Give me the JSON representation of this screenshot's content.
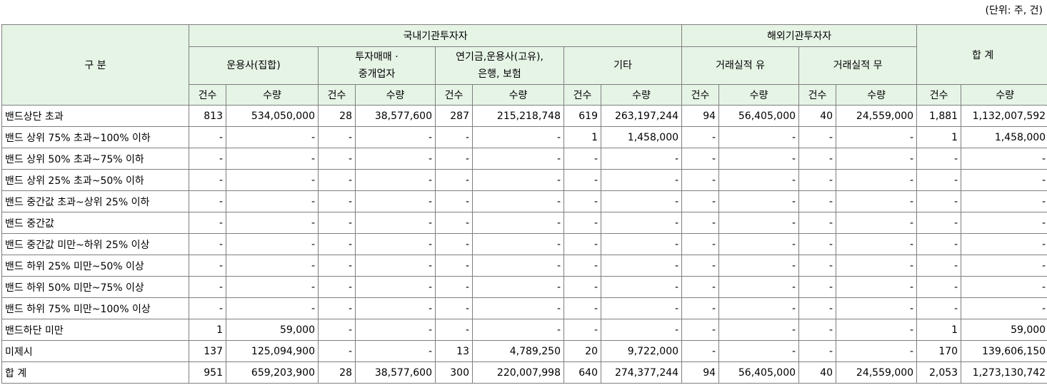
{
  "unit_note": "(단위: 주, 건)",
  "header": {
    "category": "구 분",
    "domestic": "국내기관투자자",
    "foreign": "해외기관투자자",
    "total": "합 계",
    "groups": [
      {
        "line1": "운용사(집합)",
        "line2": ""
      },
      {
        "line1": "투자매매 ·",
        "line2": "중개업자"
      },
      {
        "line1": "연기금,운용사(고유),",
        "line2": "은행, 보험"
      },
      {
        "line1": "기타",
        "line2": ""
      },
      {
        "line1": "거래실적 유",
        "line2": ""
      },
      {
        "line1": "거래실적 무",
        "line2": ""
      }
    ],
    "count_label": "건수",
    "qty_label": "수량"
  },
  "rows": [
    {
      "label": "밴드상단 초과",
      "cells": [
        "813",
        "534,050,000",
        "28",
        "38,577,600",
        "287",
        "215,218,748",
        "619",
        "263,197,244",
        "94",
        "56,405,000",
        "40",
        "24,559,000",
        "1,881",
        "1,132,007,592"
      ]
    },
    {
      "label": "밴드 상위 75% 초과~100% 이하",
      "cells": [
        "-",
        "-",
        "-",
        "-",
        "-",
        "-",
        "1",
        "1,458,000",
        "-",
        "-",
        "-",
        "-",
        "1",
        "1,458,000"
      ]
    },
    {
      "label": "밴드 상위 50% 초과~75% 이하",
      "cells": [
        "-",
        "-",
        "-",
        "-",
        "-",
        "-",
        "-",
        "-",
        "-",
        "-",
        "-",
        "-",
        "-",
        "-"
      ]
    },
    {
      "label": "밴드 상위 25% 초과~50% 이하",
      "cells": [
        "-",
        "-",
        "-",
        "-",
        "-",
        "-",
        "-",
        "-",
        "-",
        "-",
        "-",
        "-",
        "-",
        "-"
      ]
    },
    {
      "label": "밴드 중간값 초과~상위 25% 이하",
      "cells": [
        "-",
        "-",
        "-",
        "-",
        "-",
        "-",
        "-",
        "-",
        "-",
        "-",
        "-",
        "-",
        "-",
        "-"
      ]
    },
    {
      "label": "밴드 중간값",
      "cells": [
        "-",
        "-",
        "-",
        "-",
        "-",
        "-",
        "-",
        "-",
        "-",
        "-",
        "-",
        "-",
        "-",
        "-"
      ]
    },
    {
      "label": "밴드 중간값 미만~하위 25% 이상",
      "cells": [
        "-",
        "-",
        "-",
        "-",
        "-",
        "-",
        "-",
        "-",
        "-",
        "-",
        "-",
        "-",
        "-",
        "-"
      ]
    },
    {
      "label": "밴드 하위 25% 미만~50% 이상",
      "cells": [
        "-",
        "-",
        "-",
        "-",
        "-",
        "-",
        "-",
        "-",
        "-",
        "-",
        "-",
        "-",
        "-",
        "-"
      ]
    },
    {
      "label": "밴드 하위 50% 미만~75% 이상",
      "cells": [
        "-",
        "-",
        "-",
        "-",
        "-",
        "-",
        "-",
        "-",
        "-",
        "-",
        "-",
        "-",
        "-",
        "-"
      ]
    },
    {
      "label": "밴드 하위 75% 미만~100% 이상",
      "cells": [
        "-",
        "-",
        "-",
        "-",
        "-",
        "-",
        "-",
        "-",
        "-",
        "-",
        "-",
        "-",
        "-",
        "-"
      ]
    },
    {
      "label": "밴드하단 미만",
      "cells": [
        "1",
        "59,000",
        "-",
        "-",
        "-",
        "-",
        "-",
        "-",
        "-",
        "-",
        "-",
        "-",
        "1",
        "59,000"
      ]
    },
    {
      "label": "미제시",
      "cells": [
        "137",
        "125,094,900",
        "-",
        "-",
        "13",
        "4,789,250",
        "20",
        "9,722,000",
        "-",
        "-",
        "-",
        "-",
        "170",
        "139,606,150"
      ]
    },
    {
      "label": "합 계",
      "cells": [
        "951",
        "659,203,900",
        "28",
        "38,577,600",
        "300",
        "220,007,998",
        "640",
        "274,377,244",
        "94",
        "56,405,000",
        "40",
        "24,559,000",
        "2,053",
        "1,273,130,742"
      ]
    }
  ]
}
